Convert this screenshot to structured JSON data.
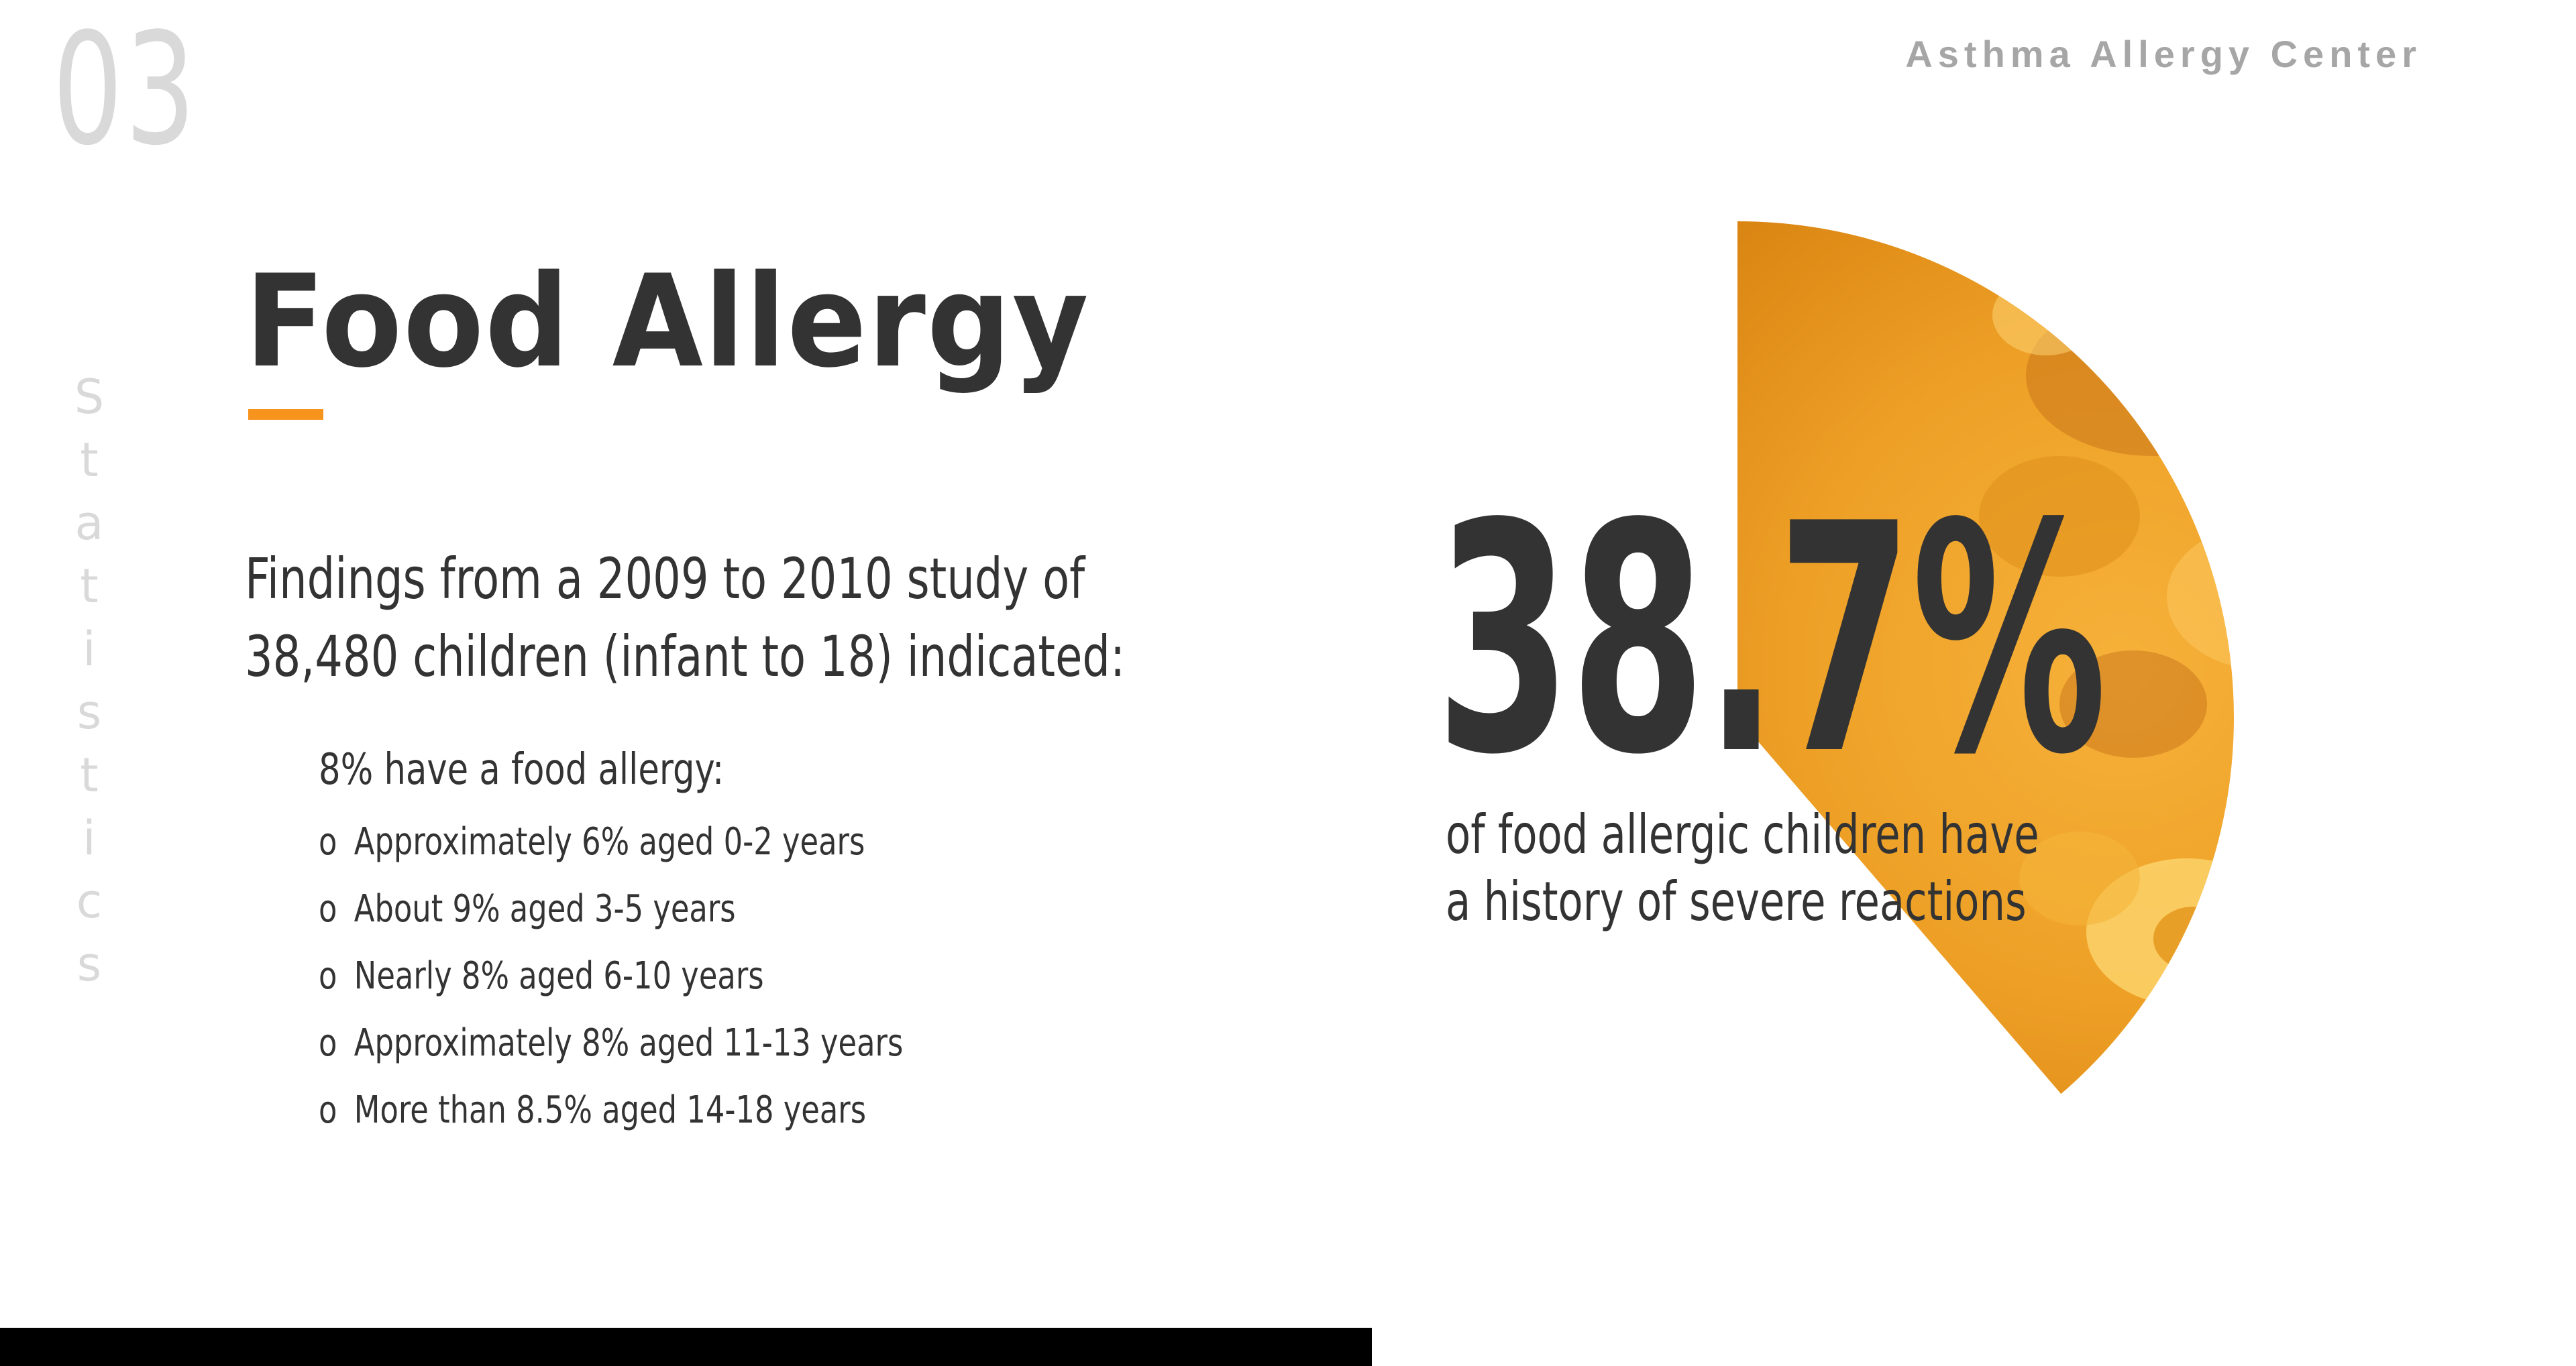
{
  "header": {
    "slide_number": "03",
    "brand": "Asthma Allergy Center"
  },
  "side_label": {
    "letters": [
      "S",
      "t",
      "a",
      "t",
      "i",
      "s",
      "t",
      "i",
      "c",
      "s"
    ]
  },
  "main": {
    "title": "Food Allergy",
    "intro_lines": [
      "Findings from a 2009 to 2010 study of",
      "38,480 children (infant to 18) indicated:"
    ],
    "lead": "8% have a food allergy:",
    "bullet_symbol": "o",
    "items": [
      "Approximately 6% aged 0-2 years",
      "About 9% aged 3-5 years",
      "Nearly 8% aged 6-10 years",
      "Approximately 8% aged 11-13 years",
      "More than 8.5% aged 14-18 years"
    ]
  },
  "stat": {
    "value": "38.7%",
    "fraction": 0.387,
    "caption_lines": [
      "of food allergic children have",
      "a history of severe reactions"
    ]
  },
  "colors": {
    "accent": "#f7941d",
    "text": "#333333",
    "muted": "#d9d9d9",
    "brand": "#a6a6a6",
    "pie_fill": "#f0a22a",
    "bar": "#000000"
  },
  "icons": {
    "pie": "food-image-pie-slice"
  }
}
